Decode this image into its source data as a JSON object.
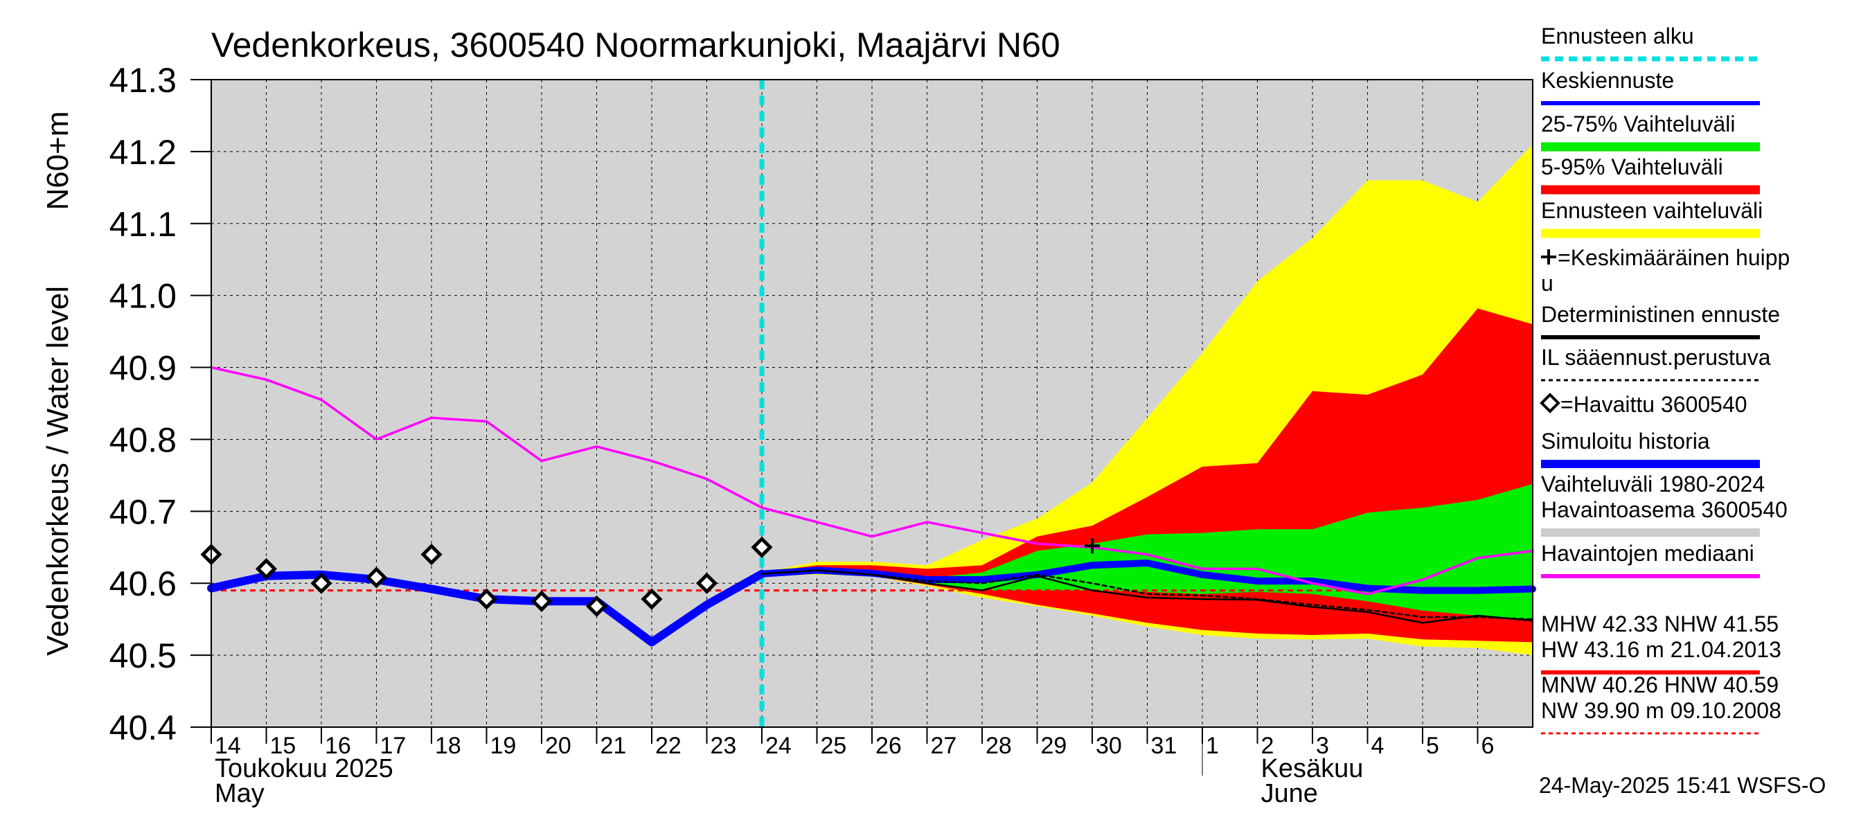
{
  "chart_data": {
    "type": "line",
    "title": "Vedenkorkeus, 3600540 Noormarkunjoki, Maajärvi N60",
    "ylabel_primary": "Vedenkorkeus / Water level",
    "ylabel_secondary": "N60+m",
    "ylim": [
      40.4,
      41.3
    ],
    "yticks": [
      "41.3",
      "41.2",
      "41.1",
      "41.0",
      "40.9",
      "40.8",
      "40.7",
      "40.6",
      "40.5",
      "40.4"
    ],
    "xlim": [
      0,
      24
    ],
    "xticks": [
      {
        "x": 0,
        "label": "14"
      },
      {
        "x": 1,
        "label": "15"
      },
      {
        "x": 2,
        "label": "16"
      },
      {
        "x": 3,
        "label": "17"
      },
      {
        "x": 4,
        "label": "18"
      },
      {
        "x": 5,
        "label": "19"
      },
      {
        "x": 6,
        "label": "20"
      },
      {
        "x": 7,
        "label": "21"
      },
      {
        "x": 8,
        "label": "22"
      },
      {
        "x": 9,
        "label": "23"
      },
      {
        "x": 10,
        "label": "24"
      },
      {
        "x": 11,
        "label": "25"
      },
      {
        "x": 12,
        "label": "26"
      },
      {
        "x": 13,
        "label": "27"
      },
      {
        "x": 14,
        "label": "28"
      },
      {
        "x": 15,
        "label": "29"
      },
      {
        "x": 16,
        "label": "30"
      },
      {
        "x": 17,
        "label": "31"
      },
      {
        "x": 18,
        "label": "1"
      },
      {
        "x": 19,
        "label": "2"
      },
      {
        "x": 20,
        "label": "3"
      },
      {
        "x": 21,
        "label": "4"
      },
      {
        "x": 22,
        "label": "5"
      },
      {
        "x": 23,
        "label": "6"
      }
    ],
    "month_labels": [
      {
        "x": 0,
        "fi": "Toukokuu  2025",
        "en": "May"
      },
      {
        "x": 19,
        "fi": "Kesäkuu",
        "en": "June"
      }
    ],
    "month_divider_x": 18,
    "forecast_start_x": 10,
    "band_x": [
      10,
      11,
      12,
      13,
      14,
      15,
      16,
      17,
      18,
      19,
      20,
      21,
      22,
      23,
      24
    ],
    "band_forecast_range": {
      "upper": [
        40.615,
        40.63,
        40.63,
        40.625,
        40.66,
        40.69,
        40.74,
        40.83,
        40.92,
        41.02,
        41.08,
        41.16,
        41.16,
        41.13,
        41.21
      ],
      "lower": [
        40.61,
        40.612,
        40.61,
        40.596,
        40.58,
        40.568,
        40.555,
        40.54,
        40.528,
        40.523,
        40.522,
        40.523,
        40.512,
        40.51,
        40.5
      ]
    },
    "band_5_95": {
      "upper": [
        40.615,
        40.625,
        40.625,
        40.62,
        40.625,
        40.665,
        40.68,
        40.72,
        40.762,
        40.767,
        40.867,
        40.862,
        40.89,
        40.982,
        40.96
      ],
      "lower": [
        40.612,
        40.615,
        40.61,
        40.598,
        40.585,
        40.57,
        40.558,
        40.545,
        40.535,
        40.53,
        40.528,
        40.53,
        40.522,
        40.52,
        40.518
      ]
    },
    "band_25_75": {
      "upper": [
        40.613,
        40.62,
        40.617,
        40.607,
        40.615,
        40.645,
        40.655,
        40.668,
        40.67,
        40.675,
        40.675,
        40.698,
        40.705,
        40.716,
        40.738
      ],
      "lower": [
        40.612,
        40.618,
        40.612,
        40.6,
        40.59,
        40.59,
        40.59,
        40.588,
        40.585,
        40.588,
        40.585,
        40.575,
        40.562,
        40.555,
        40.55
      ]
    },
    "series": [
      {
        "name": "Simuloitu historia",
        "color": "#0000ff",
        "x": [
          0,
          1,
          2,
          3,
          4,
          5,
          6,
          7,
          8,
          9,
          10
        ],
        "y": [
          40.593,
          40.61,
          40.612,
          40.605,
          40.592,
          40.578,
          40.575,
          40.575,
          40.518,
          40.57,
          40.613
        ]
      },
      {
        "name": "Keskiennuste",
        "color": "#0000ff",
        "x": [
          10,
          11,
          12,
          13,
          14,
          15,
          16,
          17,
          18,
          19,
          20,
          21,
          22,
          23,
          24
        ],
        "y": [
          40.613,
          40.618,
          40.614,
          40.605,
          40.605,
          40.612,
          40.625,
          40.628,
          40.612,
          40.603,
          40.603,
          40.593,
          40.59,
          40.59,
          40.592
        ]
      },
      {
        "name": "Deterministinen ennuste",
        "color": "#000000",
        "x": [
          10,
          11,
          12,
          13,
          14,
          15,
          16,
          17,
          18,
          19,
          20,
          21,
          22,
          23,
          24
        ],
        "y": [
          40.613,
          40.618,
          40.612,
          40.6,
          40.59,
          40.61,
          40.59,
          40.58,
          40.578,
          40.577,
          40.567,
          40.56,
          40.545,
          40.555,
          40.548
        ]
      },
      {
        "name": "IL sääennust.perustuva",
        "color": "#000000",
        "x": [
          10,
          11,
          12,
          13,
          14,
          15,
          16,
          17,
          18,
          19,
          20,
          21,
          22,
          23,
          24
        ],
        "y": [
          40.613,
          40.618,
          40.612,
          40.603,
          40.6,
          40.612,
          40.6,
          40.585,
          40.583,
          40.578,
          40.57,
          40.563,
          40.553,
          40.553,
          40.55
        ]
      },
      {
        "name": "Havaintojen mediaani",
        "color": "#ff00ff",
        "x": [
          0,
          1,
          2,
          3,
          4,
          5,
          6,
          7,
          8,
          9,
          10,
          11,
          12,
          13,
          14,
          15,
          16,
          17,
          18,
          19,
          20,
          21,
          22,
          23,
          24
        ],
        "y": [
          40.9,
          40.883,
          40.855,
          40.8,
          40.83,
          40.825,
          40.77,
          40.79,
          40.77,
          40.745,
          40.705,
          40.685,
          40.665,
          40.685,
          40.67,
          40.655,
          40.65,
          40.64,
          40.62,
          40.62,
          40.6,
          40.585,
          40.605,
          40.635,
          40.645
        ]
      },
      {
        "name": "Havaittu 3600540",
        "color": "#000000",
        "x": [
          0,
          1,
          2,
          3,
          4,
          5,
          6,
          7,
          8,
          9,
          10
        ],
        "y": [
          40.64,
          40.62,
          40.6,
          40.608,
          40.64,
          40.578,
          40.575,
          40.568,
          40.578,
          40.6,
          40.65
        ]
      }
    ],
    "mean_peak": {
      "x": 16,
      "y": 40.652,
      "label": "Keskimääräinen huippu"
    },
    "hw_level": {
      "y": 43.16,
      "label": "HW  43.16 m 21.04.2013",
      "color": "#ff0000"
    },
    "nw_level": {
      "y": 40.59,
      "color": "#ff0000"
    },
    "legend": [
      {
        "label": "Ennusteen alku",
        "color": "#00e0e0",
        "style": "dashed"
      },
      {
        "label": "Keskiennuste",
        "color": "#0000ff",
        "style": "solid"
      },
      {
        "label": "25-75% Vaihteluväli",
        "color": "#00ee00",
        "style": "band"
      },
      {
        "label": "5-95% Vaihteluväli",
        "color": "#ff0000",
        "style": "band"
      },
      {
        "label": "Ennusteen vaihteluväli",
        "color": "#ffff00",
        "style": "band"
      },
      {
        "label": "=Keskimääräinen huipp",
        "label2": "u",
        "color": "#000000",
        "style": "plus"
      },
      {
        "label": "Deterministinen ennuste",
        "color": "#000000",
        "style": "solid"
      },
      {
        "label": "IL sääennust.perustuva",
        "color": "#000000",
        "style": "dotted"
      },
      {
        "label": "=Havaittu 3600540",
        "color": "#000000",
        "style": "diamond"
      },
      {
        "label": "Simuloitu historia",
        "color": "#0000ff",
        "style": "thick"
      },
      {
        "label": "Vaihteluväli 1980-2024",
        "label2": " Havaintoasema 3600540",
        "color": "#cccccc",
        "style": "thick"
      },
      {
        "label": "Havaintojen mediaani",
        "color": "#ff00ff",
        "style": "solid"
      },
      {
        "label": "MHW  42.33 NHW  41.55",
        "label2": "HW  43.16 m 21.04.2013",
        "color": "#ff0000",
        "style": "solid"
      },
      {
        "label": "MNW  40.26 HNW  40.59",
        "label2": "NW  39.90 m 09.10.2008",
        "color": "#ff0000",
        "style": "dotted"
      }
    ],
    "footer": "24-May-2025 15:41 WSFS-O"
  }
}
